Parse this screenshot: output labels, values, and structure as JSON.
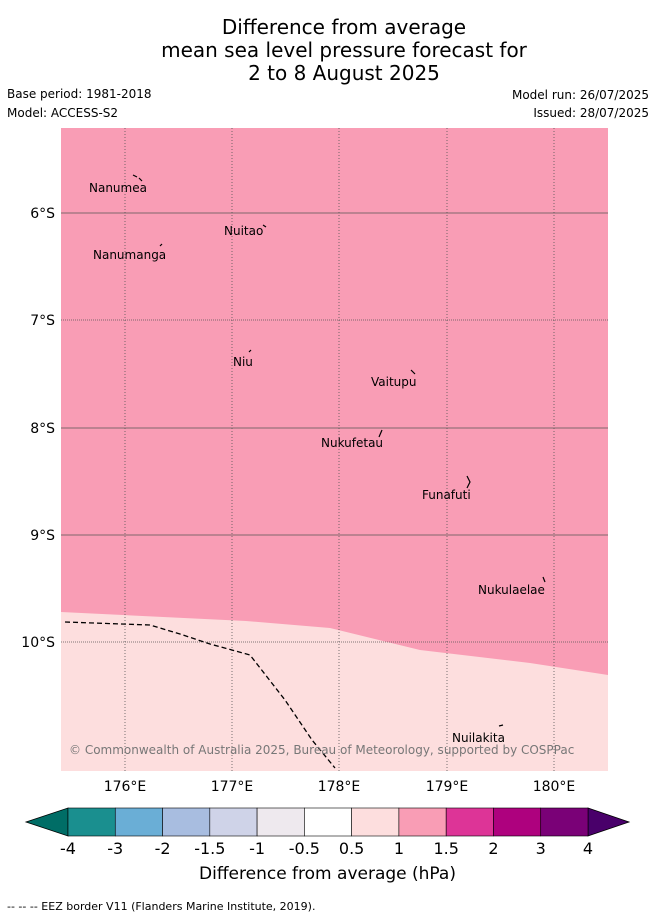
{
  "title": {
    "line1": "Difference from average",
    "line2": "mean sea level pressure forecast for",
    "line3": "2 to 8 August 2025"
  },
  "meta": {
    "base_period": "Base period: 1981-2018",
    "model": "Model: ACCESS-S2",
    "model_run": "Model run: 26/07/2025",
    "issued": "Issued: 28/07/2025"
  },
  "map": {
    "lat_labels": [
      "6°S",
      "7°S",
      "8°S",
      "9°S",
      "10°S"
    ],
    "lon_labels": [
      "176°E",
      "177°E",
      "178°E",
      "179°E",
      "180°E"
    ],
    "islands": [
      "Nanumea",
      "Nuitao",
      "Nanumanga",
      "Niu",
      "Vaitupu",
      "Nukufetau",
      "Funafuti",
      "Nukulaelae",
      "Nuilakita"
    ],
    "copyright": "© Commonwealth of Australia 2025, Bureau of Meteorology, supported by COSPPac",
    "colors": {
      "high": "#f99db5",
      "low": "#fddede"
    }
  },
  "colorbar": {
    "ticks": [
      "-4",
      "-3",
      "-2",
      "-1.5",
      "-1",
      "-0.5",
      "0.5",
      "1",
      "1.5",
      "2",
      "3",
      "4"
    ],
    "colors": [
      "#1a8f8f",
      "#6aaed6",
      "#a8bde0",
      "#cfd3e8",
      "#eee9ee",
      "#ffffff",
      "#fddede",
      "#f99db5",
      "#dd3497",
      "#ae017e",
      "#7a0177"
    ],
    "under_color": "#006d66",
    "over_color": "#49006a",
    "label": "Difference from average (hPa)"
  },
  "footer": "-- -- -- EEZ border V11 (Flanders Marine Institute, 2019)."
}
